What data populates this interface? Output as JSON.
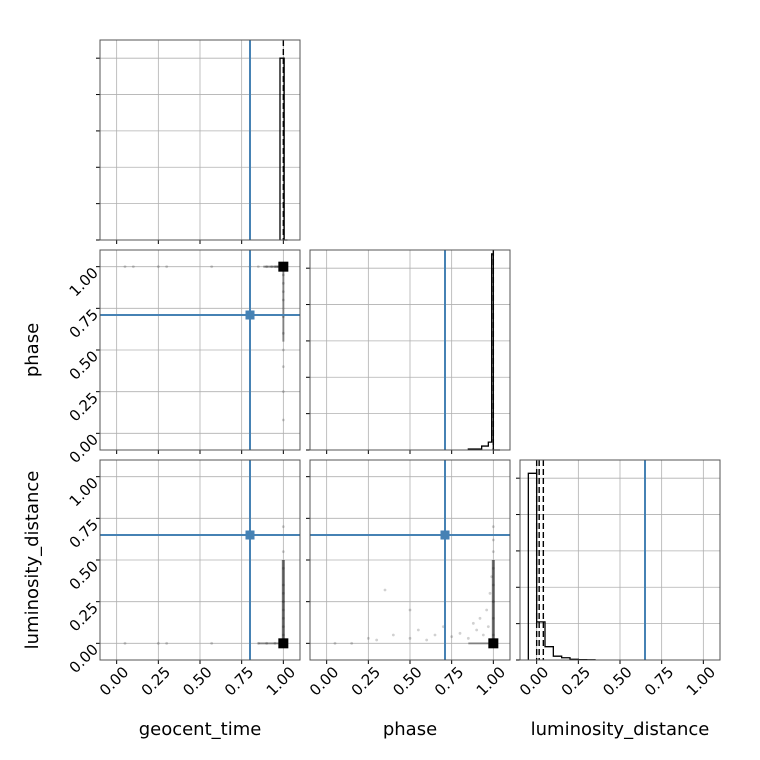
{
  "chart_data": {
    "type": "corner",
    "parameters": [
      "geocent_time",
      "phase",
      "luminosity_distance"
    ],
    "axis_range": [
      -0.1,
      1.1
    ],
    "tick_values": [
      0.0,
      0.25,
      0.5,
      0.75,
      1.0
    ],
    "tick_labels": [
      "0.00",
      "0.25",
      "0.50",
      "0.75",
      "1.00"
    ],
    "grid": true,
    "colors": {
      "truth": "#4682b4",
      "histogram": "#000000",
      "scatter": "#000000",
      "grid": "#b0b0b0"
    },
    "truths": {
      "geocent_time": 0.8,
      "phase": 0.71,
      "luminosity_distance": 0.65
    },
    "quantiles": {
      "geocent_time": [
        1.0
      ],
      "phase": [
        1.0
      ],
      "luminosity_distance": [
        0.0,
        0.015,
        0.04
      ]
    },
    "histograms": {
      "geocent_time": {
        "bin_edges": [
          0.98,
          1.005,
          1.025
        ],
        "counts": [
          1.0,
          0.0
        ],
        "ylim": [
          0,
          1.1
        ]
      },
      "phase": {
        "bin_edges": [
          0.85,
          0.93,
          0.97,
          0.99,
          1.0,
          1.04
        ],
        "counts": [
          0.005,
          0.02,
          0.04,
          1.0,
          0.0
        ],
        "ylim": [
          0,
          1.02
        ]
      },
      "luminosity_distance": {
        "bin_edges": [
          -0.05,
          0.0,
          0.05,
          0.1,
          0.15,
          0.2,
          0.25,
          0.3,
          0.35
        ],
        "counts": [
          0.98,
          0.2,
          0.07,
          0.02,
          0.012,
          0.004,
          0.002,
          0.001
        ],
        "ylim": [
          0,
          1.05
        ]
      }
    },
    "scatter": {
      "geocent_time_vs_phase": {
        "x": [
          0.05,
          0.1,
          0.25,
          0.3,
          0.57,
          0.8,
          0.85,
          0.9,
          0.93,
          0.95,
          0.96,
          0.97,
          0.98,
          0.99,
          1.0,
          1.0,
          1.0,
          1.0,
          1.0,
          1.0,
          1.0,
          1.0,
          1.0,
          1.0,
          1.0
        ],
        "y": [
          1.0,
          1.0,
          1.0,
          1.0,
          1.0,
          1.0,
          1.0,
          1.0,
          1.0,
          1.0,
          1.0,
          1.0,
          1.0,
          1.0,
          0.98,
          0.95,
          0.9,
          0.85,
          0.8,
          0.7,
          0.6,
          0.5,
          0.4,
          0.25,
          0.08
        ]
      },
      "geocent_time_vs_luminosity_distance": {
        "x": [
          0.05,
          0.25,
          0.3,
          0.57,
          0.85,
          0.9,
          0.95,
          0.98,
          1.0,
          1.0,
          1.0,
          1.0,
          1.0,
          1.0,
          1.0,
          1.0,
          1.0,
          1.0,
          1.0
        ],
        "y": [
          0.0,
          0.0,
          0.0,
          0.0,
          0.0,
          0.0,
          0.0,
          0.0,
          0.01,
          0.05,
          0.1,
          0.15,
          0.2,
          0.25,
          0.3,
          0.35,
          0.45,
          0.55,
          0.7
        ],
        "peak": [
          1.0,
          0.0
        ]
      },
      "phase_vs_luminosity_distance": {
        "x": [
          0.05,
          0.15,
          0.25,
          0.3,
          0.4,
          0.5,
          0.55,
          0.6,
          0.65,
          0.7,
          0.75,
          0.8,
          0.85,
          0.88,
          0.9,
          0.92,
          0.94,
          0.96,
          0.97,
          0.98,
          0.99,
          1.0,
          1.0,
          1.0,
          1.0,
          1.0,
          1.0,
          1.0,
          1.0,
          0.5,
          0.35
        ],
        "y": [
          0.0,
          0.0,
          0.03,
          0.02,
          0.05,
          0.03,
          0.08,
          0.02,
          0.05,
          0.1,
          0.04,
          0.06,
          0.03,
          0.12,
          0.08,
          0.15,
          0.05,
          0.2,
          0.1,
          0.3,
          0.4,
          0.05,
          0.15,
          0.25,
          0.35,
          0.45,
          0.55,
          0.62,
          0.7,
          0.2,
          0.32
        ],
        "peak": [
          1.0,
          0.0
        ]
      },
      "geocent_time_vs_phase_peak": [
        1.0,
        1.0
      ]
    }
  }
}
